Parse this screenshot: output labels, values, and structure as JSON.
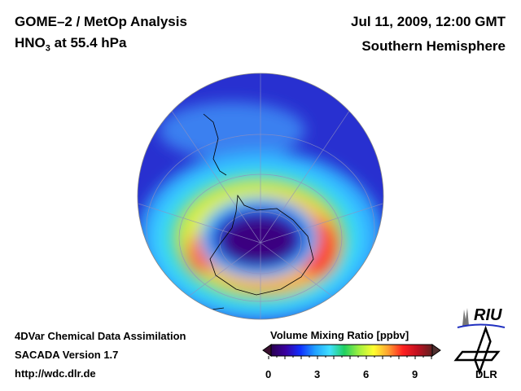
{
  "header": {
    "title": "GOME–2 / MetOp Analysis",
    "species_main": "HNO",
    "species_sub": "3",
    "level": " at 55.4 hPa",
    "datetime": "Jul 11, 2009, 12:00 GMT",
    "region": "Southern Hemisphere"
  },
  "footer": {
    "line1": "4DVar Chemical Data Assimilation",
    "line2": "SACADA Version 1.7",
    "line3": "http://wdc.dlr.de"
  },
  "colorbar": {
    "title": "Volume Mixing Ratio [ppbv]",
    "range": [
      0,
      10
    ],
    "ticks": [
      "0",
      "3",
      "6",
      "9"
    ],
    "colors": [
      "#2a0050",
      "#3a00a0",
      "#1030ff",
      "#20a0ff",
      "#40e0ff",
      "#20d060",
      "#a0f040",
      "#ffff30",
      "#ffa030",
      "#ff2020",
      "#c01020",
      "#602020"
    ]
  },
  "logos": {
    "riu": "RIU",
    "dlr": "DLR"
  }
}
